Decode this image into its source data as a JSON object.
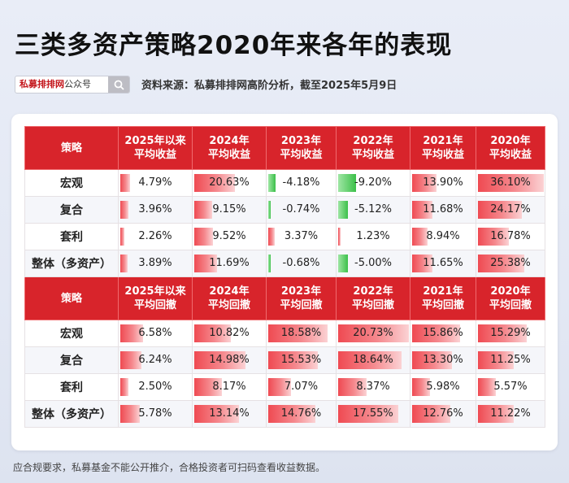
{
  "title": "三类多资产策略2020年来各年的表现",
  "search": {
    "brand": "私募排排网",
    "suffix": "公众号"
  },
  "source": "资料来源：私募排排网高阶分析，截至2025年5月9日",
  "footer": "应合规要求，私募基金不能公开推介，合格投资者可扫码查看收益数据。",
  "colors": {
    "header": "#d8242b",
    "positive": "#ef4a52",
    "negative": "#3cc04a"
  },
  "chart_data": [
    {
      "type": "table",
      "header": [
        "策略",
        "2025年以来\n平均收益",
        "2024年\n平均收益",
        "2023年\n平均收益",
        "2022年\n平均收益",
        "2021年\n平均收益",
        "2020年\n平均收益"
      ],
      "max": 36.1,
      "rows": [
        {
          "label": "宏观",
          "values": [
            4.79,
            20.63,
            -4.18,
            -9.2,
            13.9,
            36.1
          ],
          "text": [
            "4.79%",
            "20.63%",
            "-4.18%",
            "-9.20%",
            "13.90%",
            "36.10%"
          ]
        },
        {
          "label": "复合",
          "values": [
            3.96,
            9.15,
            -0.74,
            -5.12,
            11.68,
            24.17
          ],
          "text": [
            "3.96%",
            "9.15%",
            "-0.74%",
            "-5.12%",
            "11.68%",
            "24.17%"
          ]
        },
        {
          "label": "套利",
          "values": [
            2.26,
            9.52,
            3.37,
            1.23,
            8.94,
            16.78
          ],
          "text": [
            "2.26%",
            "9.52%",
            "3.37%",
            "1.23%",
            "8.94%",
            "16.78%"
          ]
        },
        {
          "label": "整体（多资产）",
          "values": [
            3.89,
            11.69,
            -0.68,
            -5.0,
            11.65,
            25.38
          ],
          "text": [
            "3.89%",
            "11.69%",
            "-0.68%",
            "-5.00%",
            "11.65%",
            "25.38%"
          ]
        }
      ]
    },
    {
      "type": "table",
      "header": [
        "策略",
        "2025年以来\n平均回撤",
        "2024年\n平均回撤",
        "2023年\n平均回撤",
        "2022年\n平均回撤",
        "2021年\n平均回撤",
        "2020年\n平均回撤"
      ],
      "max": 20.73,
      "rows": [
        {
          "label": "宏观",
          "values": [
            6.58,
            10.82,
            18.58,
            20.73,
            15.86,
            15.29
          ],
          "text": [
            "6.58%",
            "10.82%",
            "18.58%",
            "20.73%",
            "15.86%",
            "15.29%"
          ]
        },
        {
          "label": "复合",
          "values": [
            6.24,
            14.98,
            15.53,
            18.64,
            13.3,
            11.25
          ],
          "text": [
            "6.24%",
            "14.98%",
            "15.53%",
            "18.64%",
            "13.30%",
            "11.25%"
          ]
        },
        {
          "label": "套利",
          "values": [
            2.5,
            8.17,
            7.07,
            8.37,
            5.98,
            5.57
          ],
          "text": [
            "2.50%",
            "8.17%",
            "7.07%",
            "8.37%",
            "5.98%",
            "5.57%"
          ]
        },
        {
          "label": "整体（多资产）",
          "values": [
            5.78,
            13.14,
            14.76,
            17.55,
            12.76,
            11.22
          ],
          "text": [
            "5.78%",
            "13.14%",
            "14.76%",
            "17.55%",
            "12.76%",
            "11.22%"
          ]
        }
      ]
    }
  ]
}
